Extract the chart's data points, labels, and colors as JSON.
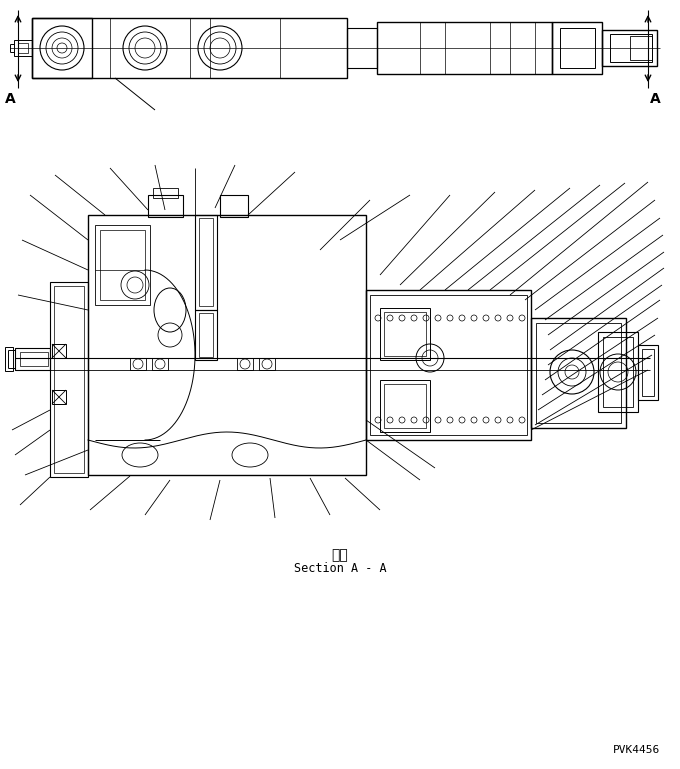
{
  "background_color": "#ffffff",
  "line_color": "#000000",
  "text_color": "#000000",
  "section_label_kanji": "断面",
  "section_label_english": "Section A - A",
  "part_number": "PVK4456",
  "fig_width": 6.8,
  "fig_height": 7.69,
  "dpi": 100
}
